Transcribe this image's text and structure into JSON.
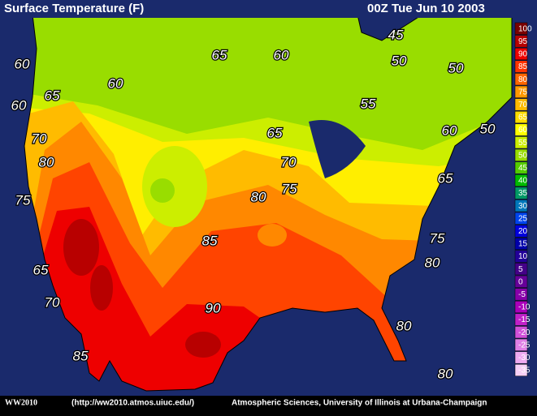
{
  "header": {
    "title": "Surface Temperature (F)",
    "timestamp": "00Z Tue Jun 10 2003"
  },
  "contour_labels": [
    "45",
    "65",
    "60",
    "50",
    "50",
    "60",
    "60",
    "60",
    "65",
    "55",
    "60",
    "50",
    "65",
    "70",
    "70",
    "80",
    "65",
    "75",
    "80",
    "75",
    "85",
    "75",
    "80",
    "65",
    "70",
    "90",
    "80",
    "85",
    "80"
  ],
  "legend": {
    "levels": [
      {
        "label": "100",
        "color": "#7a0000"
      },
      {
        "label": "95",
        "color": "#b80000"
      },
      {
        "label": "90",
        "color": "#ee0000"
      },
      {
        "label": "85",
        "color": "#ff3300"
      },
      {
        "label": "80",
        "color": "#ff6600"
      },
      {
        "label": "75",
        "color": "#ff9900"
      },
      {
        "label": "70",
        "color": "#ffbb00"
      },
      {
        "label": "65",
        "color": "#ffdd00"
      },
      {
        "label": "60",
        "color": "#ffff00"
      },
      {
        "label": "55",
        "color": "#ccee00"
      },
      {
        "label": "50",
        "color": "#99dd00"
      },
      {
        "label": "45",
        "color": "#55cc00"
      },
      {
        "label": "40",
        "color": "#00bb00"
      },
      {
        "label": "35",
        "color": "#009966"
      },
      {
        "label": "30",
        "color": "#0077bb"
      },
      {
        "label": "25",
        "color": "#0044ee"
      },
      {
        "label": "20",
        "color": "#0000dd"
      },
      {
        "label": "15",
        "color": "#0000aa"
      },
      {
        "label": "10",
        "color": "#220099"
      },
      {
        "label": "5",
        "color": "#440088"
      },
      {
        "label": "0",
        "color": "#660099"
      },
      {
        "label": "-5",
        "color": "#8800aa"
      },
      {
        "label": "-10",
        "color": "#aa00bb"
      },
      {
        "label": "-15",
        "color": "#c020c8"
      },
      {
        "label": "-20",
        "color": "#d050d8"
      },
      {
        "label": "-25",
        "color": "#e080e6"
      },
      {
        "label": "-30",
        "color": "#eeaaf0"
      },
      {
        "label": "-35",
        "color": "#f6d0f6"
      }
    ]
  },
  "footer": {
    "left": "WW2010",
    "url": "(http://ww2010.atmos.uiuc.edu/)",
    "credit": "Atmospheric Sciences, University of Illinois at Urbana-Champaign"
  }
}
